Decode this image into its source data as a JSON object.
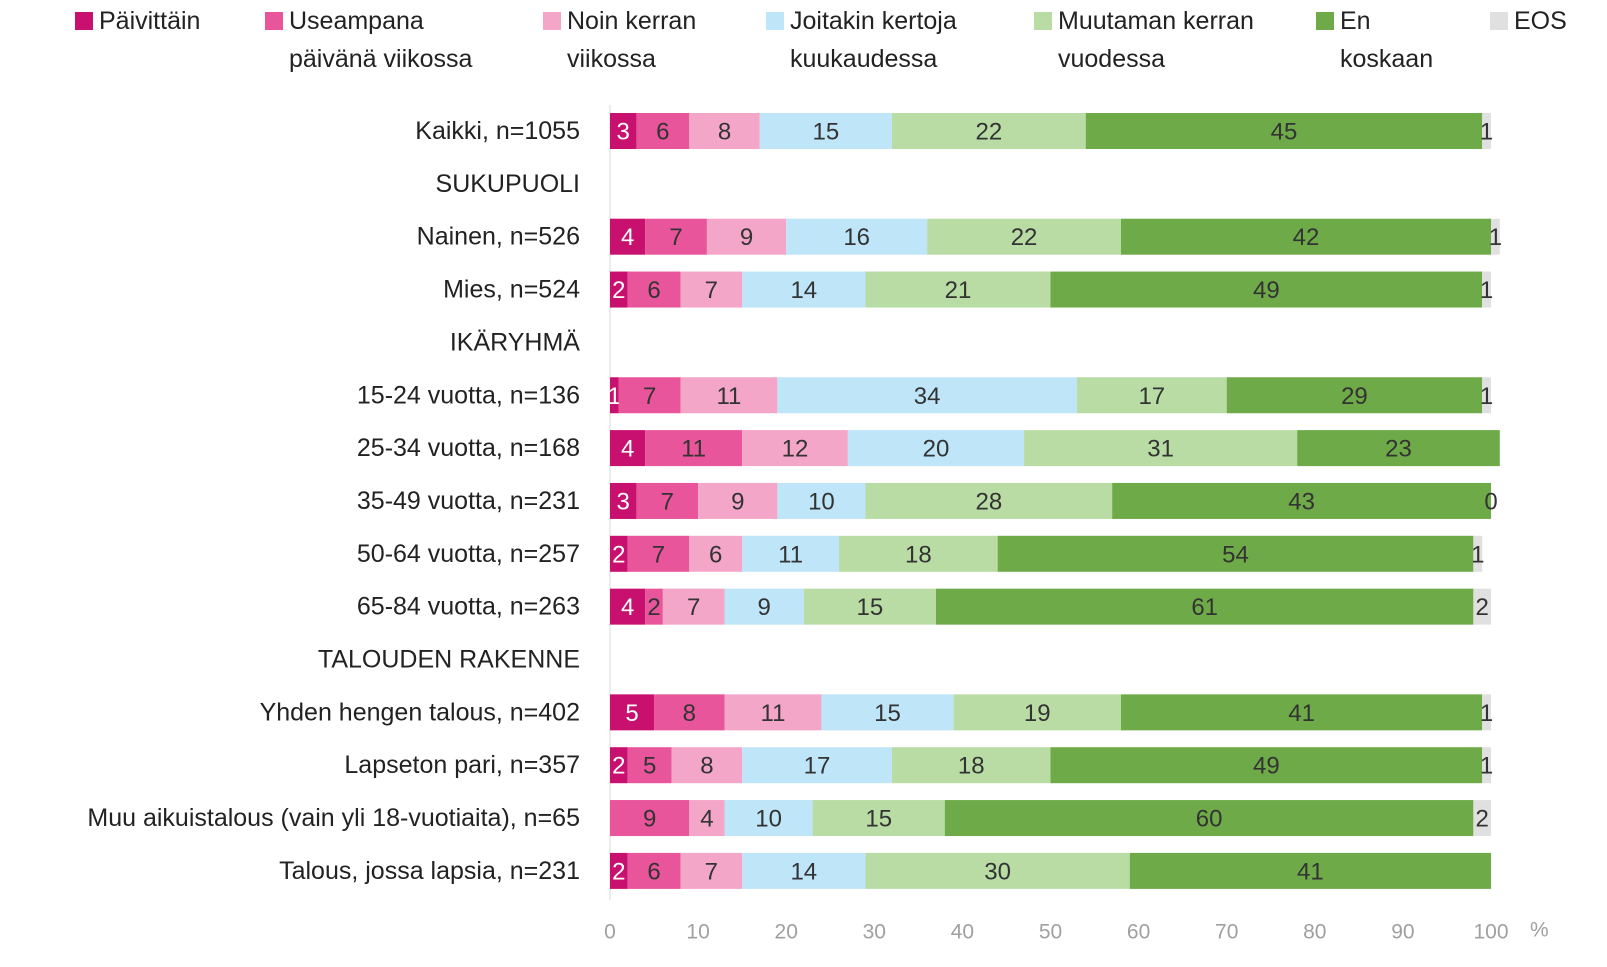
{
  "chart_data": {
    "type": "stacked-bar-horizontal",
    "categories": [
      "Kaikki, n=1055",
      "SUKUPUOLI",
      "Nainen, n=526",
      "Mies, n=524",
      "IKÄRYHMÄ",
      "15-24 vuotta, n=136",
      "25-34 vuotta, n=168",
      "35-49 vuotta, n=231",
      "50-64 vuotta, n=257",
      "65-84 vuotta, n=263",
      "TALOUDEN RAKENNE",
      "Yhden hengen talous, n=402",
      "Lapseton pari, n=357",
      "Muu aikuistalous (vain yli 18-vuotiaita), n=65",
      "Talous, jossa lapsia, n=231"
    ],
    "series": [
      {
        "name": "Päivittäin",
        "color": "#c8106e",
        "values": [
          3,
          null,
          4,
          2,
          null,
          1,
          4,
          3,
          2,
          4,
          null,
          5,
          2,
          null,
          2
        ]
      },
      {
        "name": "Useampana päivänä viikossa",
        "color": "#e8559a",
        "values": [
          6,
          null,
          7,
          6,
          null,
          7,
          11,
          7,
          7,
          2,
          null,
          8,
          5,
          9,
          6
        ]
      },
      {
        "name": "Noin kerran viikossa",
        "color": "#f4a6c9",
        "values": [
          8,
          null,
          9,
          7,
          null,
          11,
          12,
          9,
          6,
          7,
          null,
          11,
          8,
          4,
          7
        ]
      },
      {
        "name": "Joitakin kertoja kuukaudessa",
        "color": "#bee5f8",
        "values": [
          15,
          null,
          16,
          14,
          null,
          34,
          20,
          10,
          11,
          9,
          null,
          15,
          17,
          10,
          14
        ]
      },
      {
        "name": "Muutaman kerran vuodessa",
        "color": "#b9dca5",
        "values": [
          22,
          null,
          22,
          21,
          null,
          17,
          31,
          28,
          18,
          15,
          null,
          19,
          18,
          15,
          30
        ]
      },
      {
        "name": "En koskaan",
        "color": "#6eab48",
        "values": [
          45,
          null,
          42,
          49,
          null,
          29,
          23,
          43,
          54,
          61,
          null,
          41,
          49,
          60,
          41
        ]
      },
      {
        "name": "EOS",
        "color": "#e0e0e0",
        "values": [
          1,
          null,
          1,
          1,
          null,
          1,
          null,
          0,
          1,
          2,
          null,
          1,
          1,
          2,
          null
        ]
      }
    ],
    "xlim": [
      0,
      100
    ],
    "xticks": [
      0,
      10,
      20,
      30,
      40,
      50,
      60,
      70,
      80,
      90,
      100
    ],
    "xlabel": "%",
    "legend": "top"
  }
}
